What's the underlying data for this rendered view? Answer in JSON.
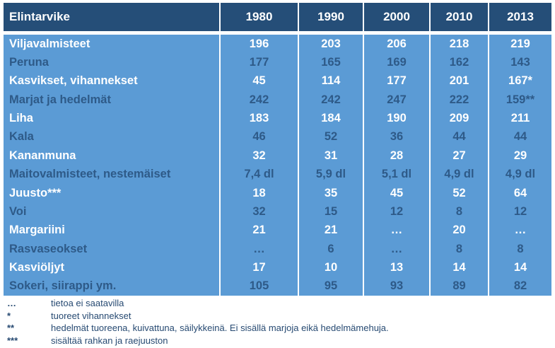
{
  "table": {
    "header": {
      "label": "Elintarvike",
      "years": [
        "1980",
        "1990",
        "2000",
        "2010",
        "2013"
      ]
    },
    "rows": [
      {
        "name": "Viljavalmisteet",
        "values": [
          "196",
          "203",
          "206",
          "218",
          "219"
        ]
      },
      {
        "name": "Peruna",
        "values": [
          "177",
          "165",
          "169",
          "162",
          "143"
        ]
      },
      {
        "name": "Kasvikset, vihannekset",
        "values": [
          "45",
          "114",
          "177",
          "201",
          "167*"
        ]
      },
      {
        "name": "Marjat ja hedelmät",
        "values": [
          "242",
          "242",
          "247",
          "222",
          "159**"
        ]
      },
      {
        "name": "Liha",
        "values": [
          "183",
          "184",
          "190",
          "209",
          "211"
        ]
      },
      {
        "name": "Kala",
        "values": [
          "46",
          "52",
          "36",
          "44",
          "44"
        ]
      },
      {
        "name": "Kananmuna",
        "values": [
          "32",
          "31",
          "28",
          "27",
          "29"
        ]
      },
      {
        "name": "Maitovalmisteet, nestemäiset",
        "values": [
          "7,4 dl",
          "5,9 dl",
          "5,1 dl",
          "4,9 dl",
          "4,9 dl"
        ]
      },
      {
        "name": "Juusto***",
        "values": [
          "18",
          "35",
          "45",
          "52",
          "64"
        ]
      },
      {
        "name": "Voi",
        "values": [
          "32",
          "15",
          "12",
          "8",
          "12"
        ]
      },
      {
        "name": "Margariini",
        "values": [
          "21",
          "21",
          "…",
          "20",
          "…"
        ]
      },
      {
        "name": "Rasvaseokset",
        "values": [
          "…",
          "6",
          "…",
          "8",
          "8"
        ]
      },
      {
        "name": "Kasviöljyt",
        "values": [
          "17",
          "10",
          "13",
          "14",
          "14"
        ]
      },
      {
        "name": "Sokeri, siirappi ym.",
        "values": [
          "105",
          "95",
          "93",
          "89",
          "82"
        ]
      }
    ]
  },
  "footnotes": [
    {
      "marker": "…",
      "text": "tietoa ei saatavilla"
    },
    {
      "marker": "*",
      "text": "tuoreet vihannekset"
    },
    {
      "marker": "**",
      "text": "hedelmät tuoreena, kuivattuna, säilykkeinä. Ei sisällä marjoja eikä hedelmämehuja."
    },
    {
      "marker": "***",
      "text": "sisältää rahkan ja raejuuston"
    }
  ],
  "colors": {
    "header_bg": "#254E78",
    "body_bg": "#5B9BD5",
    "white_text": "#FFFFFF",
    "navy_text": "#2E5A88",
    "footnote_text": "#274A72",
    "page_bg": "#FFFFFF"
  },
  "chart_data": {
    "type": "table",
    "title": "",
    "columns": [
      "Elintarvike",
      "1980",
      "1990",
      "2000",
      "2010",
      "2013"
    ],
    "rows": [
      [
        "Viljavalmisteet",
        196,
        203,
        206,
        218,
        219
      ],
      [
        "Peruna",
        177,
        165,
        169,
        162,
        143
      ],
      [
        "Kasvikset, vihannekset",
        45,
        114,
        177,
        201,
        "167*"
      ],
      [
        "Marjat ja hedelmät",
        242,
        242,
        247,
        222,
        "159**"
      ],
      [
        "Liha",
        183,
        184,
        190,
        209,
        211
      ],
      [
        "Kala",
        46,
        52,
        36,
        44,
        44
      ],
      [
        "Kananmuna",
        32,
        31,
        28,
        27,
        29
      ],
      [
        "Maitovalmisteet, nestemäiset",
        "7,4 dl",
        "5,9 dl",
        "5,1 dl",
        "4,9 dl",
        "4,9 dl"
      ],
      [
        "Juusto***",
        18,
        35,
        45,
        52,
        64
      ],
      [
        "Voi",
        32,
        15,
        12,
        8,
        12
      ],
      [
        "Margariini",
        21,
        21,
        "…",
        20,
        "…"
      ],
      [
        "Rasvaseokset",
        "…",
        6,
        "…",
        8,
        8
      ],
      [
        "Kasviöljyt",
        17,
        10,
        13,
        14,
        14
      ],
      [
        "Sokeri, siirappi ym.",
        105,
        95,
        93,
        89,
        82
      ]
    ],
    "footnotes": [
      "… tietoa ei saatavilla",
      "* tuoreet vihannekset",
      "** hedelmät tuoreena, kuivattuna, säilykkeinä. Ei sisällä marjoja eikä hedelmämehuja.",
      "*** sisältää rahkan ja raejuuston"
    ]
  }
}
